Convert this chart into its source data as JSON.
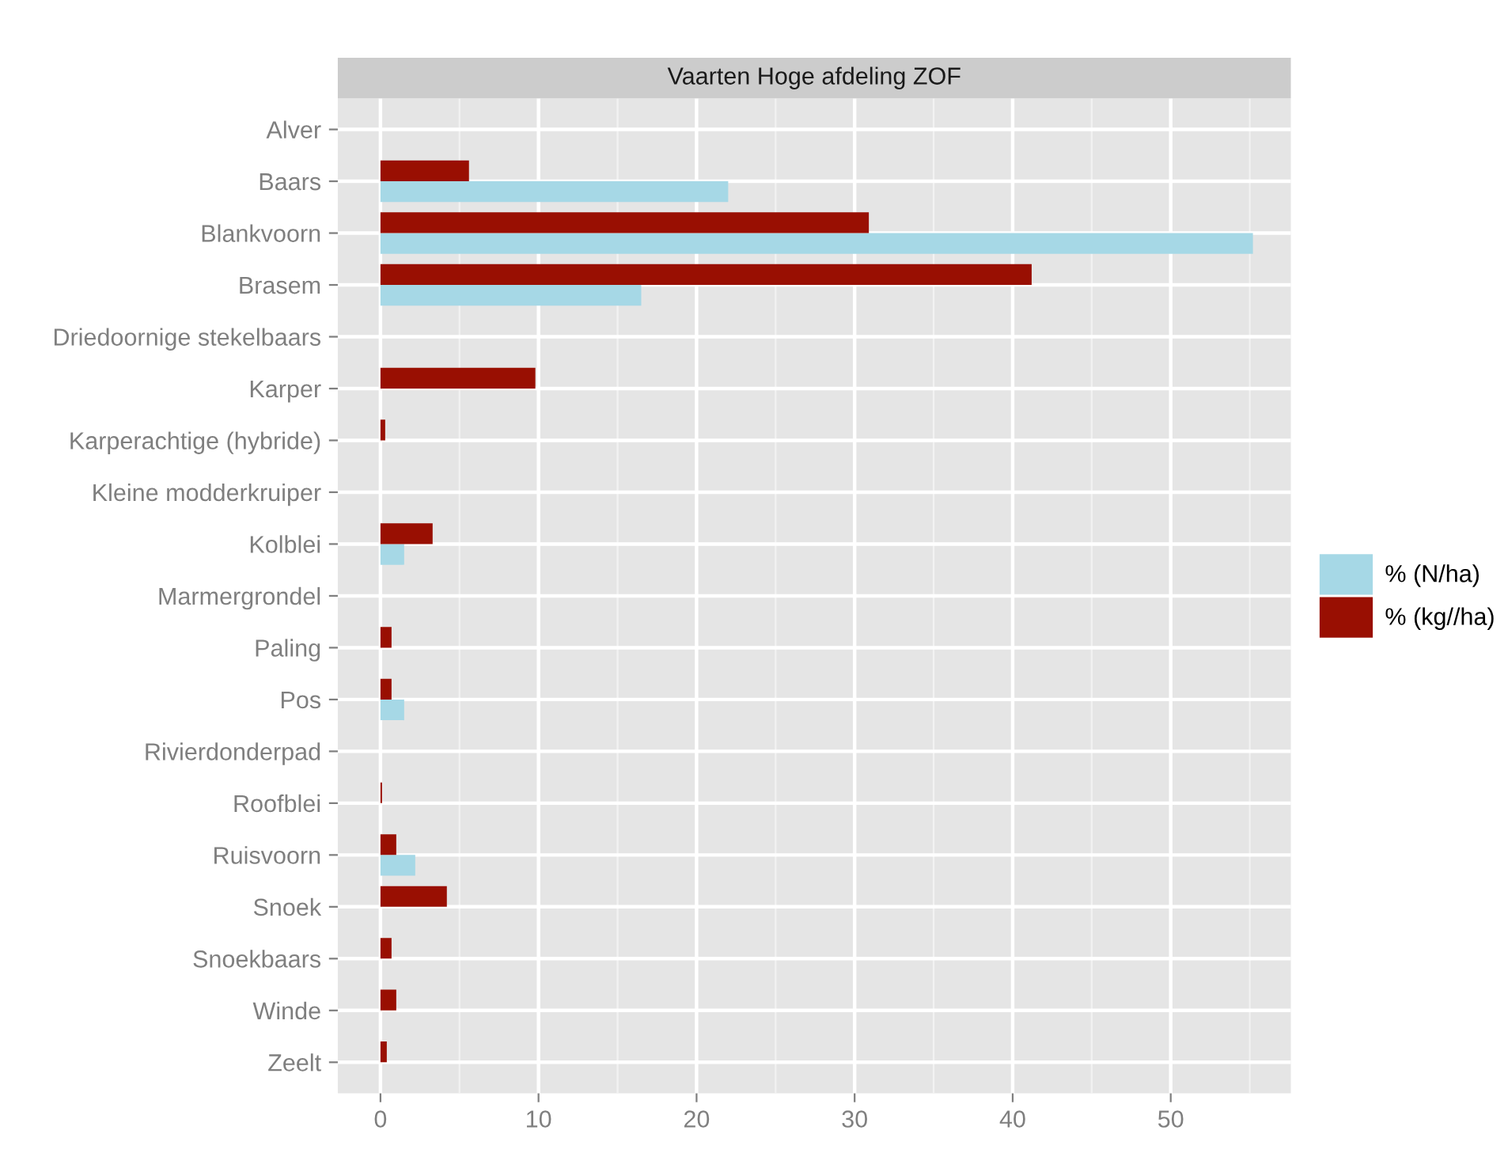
{
  "chart_data": {
    "type": "bar",
    "orientation": "horizontal",
    "title": "Vaarten Hoge afdeling ZOF",
    "categories": [
      "Alver",
      "Baars",
      "Blankvoorn",
      "Brasem",
      "Driedoornige stekelbaars",
      "Karper",
      "Karperachtige (hybride)",
      "Kleine modderkruiper",
      "Kolblei",
      "Marmergrondel",
      "Paling",
      "Pos",
      "Rivierdonderpad",
      "Roofblei",
      "Ruisvoorn",
      "Snoek",
      "Snoekbaars",
      "Winde",
      "Zeelt"
    ],
    "series": [
      {
        "name": "% (N/ha)",
        "color": "#a6d8e6",
        "values": [
          0,
          22.0,
          55.2,
          16.5,
          0,
          0,
          0,
          0,
          1.5,
          0,
          0,
          1.5,
          0,
          0,
          2.2,
          0,
          0,
          0,
          0
        ]
      },
      {
        "name": "% (kg//ha)",
        "color": "#990f02",
        "values": [
          0,
          5.6,
          30.9,
          41.2,
          0,
          9.8,
          0.3,
          0,
          3.3,
          0,
          0.7,
          0.7,
          0,
          0.1,
          1.0,
          4.2,
          0.7,
          1.0,
          0.4
        ]
      }
    ],
    "xlim": [
      -2.7,
      57.6
    ],
    "xticks": [
      0,
      10,
      20,
      30,
      40,
      50
    ],
    "grid": true,
    "legend": "right"
  }
}
